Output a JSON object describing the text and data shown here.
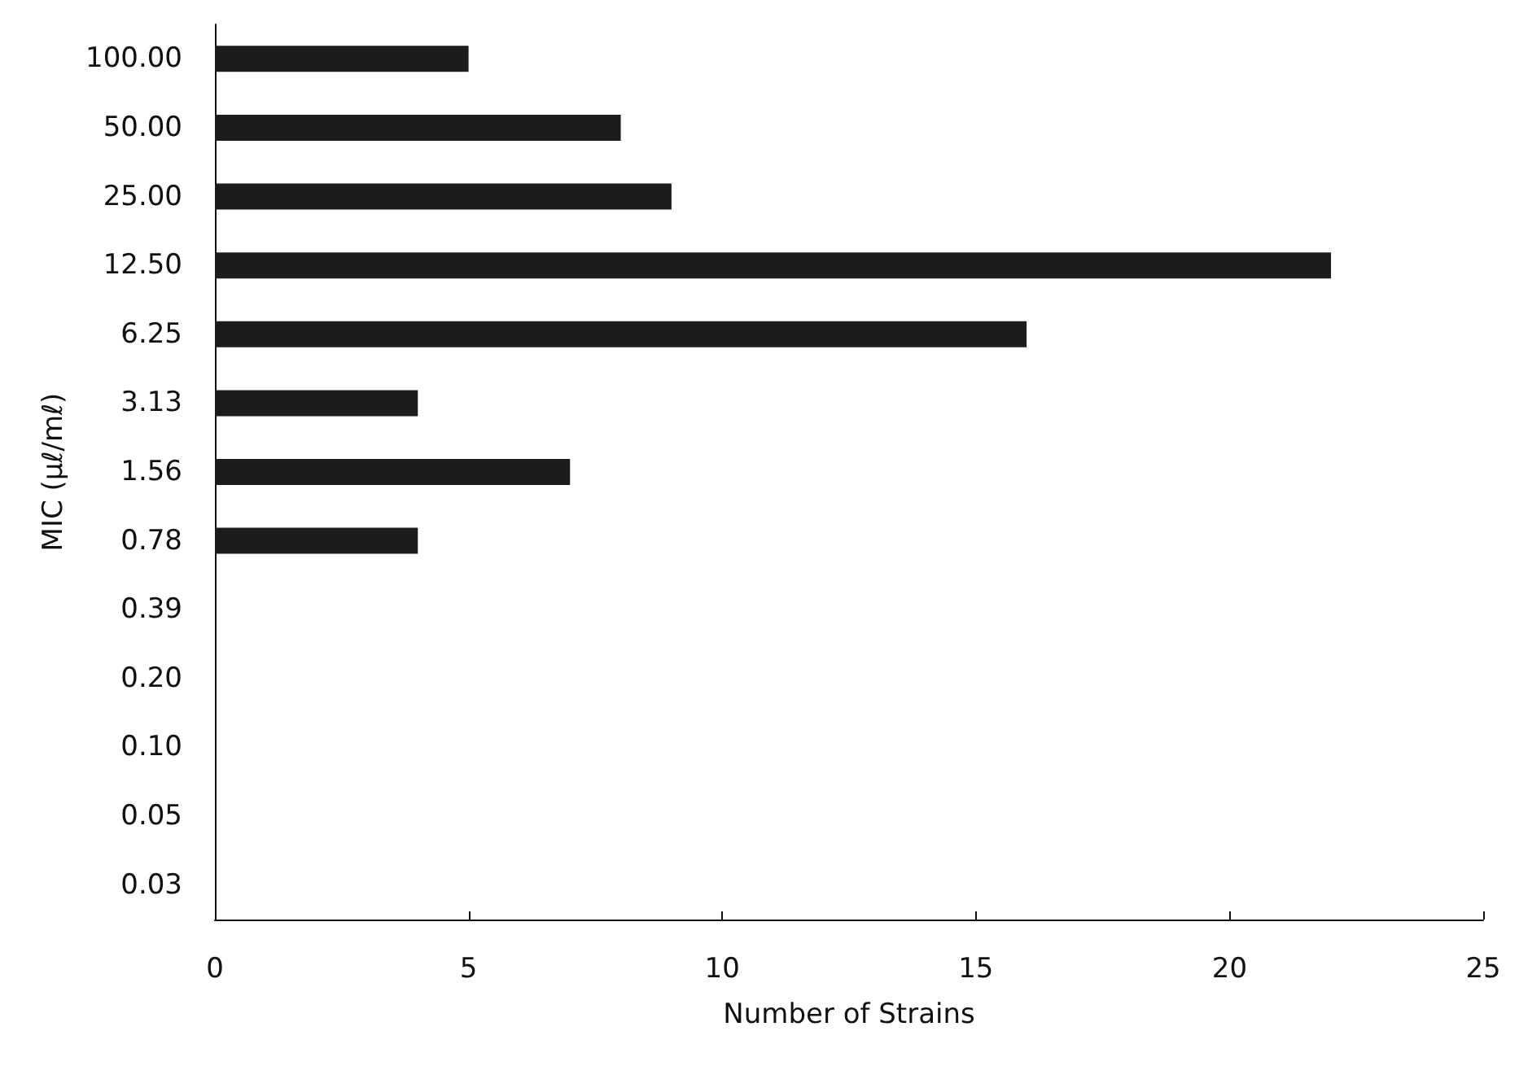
{
  "chart_data": {
    "type": "bar",
    "orientation": "horizontal",
    "xlabel": "Number of Strains",
    "ylabel": "MIC (μℓ/mℓ)",
    "categories": [
      "100.00",
      "50.00",
      "25.00",
      "12.50",
      "6.25",
      "3.13",
      "1.56",
      "0.78",
      "0.39",
      "0.20",
      "0.10",
      "0.05",
      "0.03"
    ],
    "values": [
      5,
      8,
      9,
      22,
      16,
      4,
      7,
      4,
      0,
      0,
      0,
      0,
      0
    ],
    "color": "#1c1c1c",
    "xlim": [
      0,
      25
    ],
    "xticks": [
      0,
      5,
      10,
      15,
      20,
      25
    ],
    "grid": false
  }
}
